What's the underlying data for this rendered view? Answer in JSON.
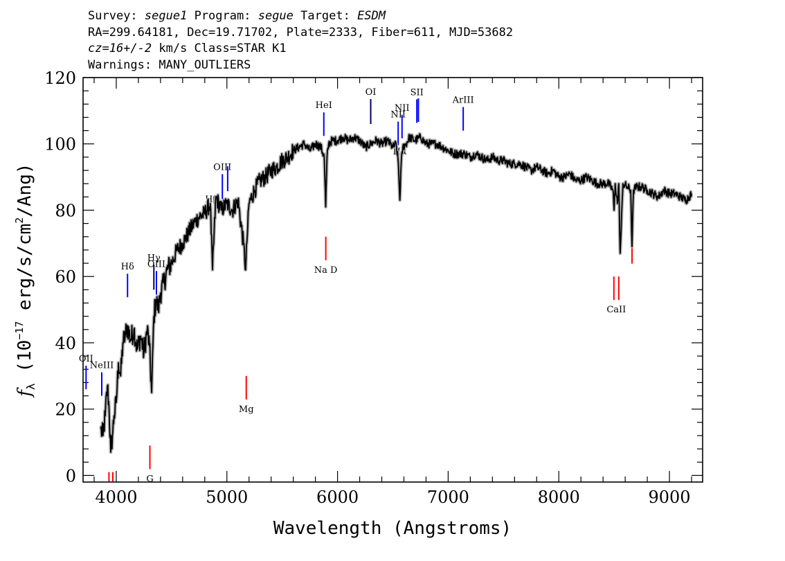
{
  "header": {
    "survey_label": "Survey:",
    "survey_value": "segue1",
    "program_label": "Program:",
    "program_value": "segue",
    "target_label": "Target:",
    "target_value": "ESDM",
    "line2": "RA=299.64181, Dec=19.71702, Plate=2333, Fiber=611, MJD=53682",
    "cz_value": "cz=16+/-2",
    "cz_rest": "km/s Class=STAR K1",
    "warnings": "Warnings: MANY_OUTLIERS"
  },
  "chart_data": {
    "type": "line",
    "xlabel": "Wavelength (Angstroms)",
    "ylabel": "f_λ (10^-17 erg/s/cm^2/Ang)",
    "xlim": [
      3700,
      9300
    ],
    "ylim": [
      -2,
      120
    ],
    "xticks": [
      4000,
      5000,
      6000,
      7000,
      8000,
      9000
    ],
    "yticks": [
      0,
      20,
      40,
      60,
      80,
      100,
      120
    ],
    "colors": {
      "flux": "#000000",
      "error": "#b4b4b4",
      "emission": "#0000ff",
      "absorption": "#ff0000"
    },
    "series": [
      {
        "x": [
          3860,
          3880,
          3900,
          3920,
          3935,
          3950,
          3965,
          3980,
          4000,
          4020,
          4040,
          4060,
          4080,
          4100,
          4130,
          4160,
          4190,
          4220,
          4250,
          4280,
          4300,
          4320,
          4340,
          4360,
          4380,
          4400,
          4430,
          4460,
          4500,
          4550,
          4600,
          4650,
          4700,
          4750,
          4800,
          4850,
          4870,
          4900,
          4950,
          5000,
          5050,
          5100,
          5150,
          5170,
          5180,
          5200,
          5250,
          5300,
          5350,
          5400,
          5450,
          5500,
          5550,
          5600,
          5650,
          5700,
          5750,
          5800,
          5850,
          5880,
          5893,
          5905,
          5920,
          5950,
          6000,
          6050,
          6100,
          6150,
          6200,
          6250,
          6300,
          6350,
          6400,
          6450,
          6500,
          6530,
          6550,
          6563,
          6575,
          6590,
          6620,
          6650,
          6700,
          6750,
          6800,
          6850,
          6900,
          6950,
          7000,
          7050,
          7100,
          7150,
          7200,
          7250,
          7300,
          7350,
          7400,
          7450,
          7500,
          7550,
          7600,
          7650,
          7700,
          7750,
          7800,
          7850,
          7900,
          7950,
          8000,
          8050,
          8100,
          8150,
          8200,
          8250,
          8300,
          8350,
          8400,
          8450,
          8490,
          8500,
          8510,
          8530,
          8542,
          8555,
          8580,
          8620,
          8650,
          8662,
          8675,
          8700,
          8750,
          8800,
          8850,
          8900,
          8950,
          9000,
          9050,
          9100,
          9150,
          9200
        ],
        "y": [
          14,
          12,
          18,
          27,
          20,
          7,
          12,
          18,
          22,
          34,
          30,
          40,
          42,
          45,
          41,
          44,
          38,
          42,
          37,
          44,
          39,
          25,
          48,
          53,
          50,
          55,
          58,
          62,
          64,
          68,
          70,
          73,
          76,
          78,
          79,
          82,
          62,
          84,
          80,
          82,
          80,
          83,
          70,
          62,
          70,
          82,
          86,
          89,
          90,
          92,
          93,
          95,
          96,
          98,
          99,
          100,
          98,
          100,
          99,
          96,
          81,
          96,
          100,
          101,
          101,
          102,
          101,
          102,
          101,
          99,
          100,
          101,
          100,
          101,
          99,
          100,
          94,
          83,
          94,
          99,
          100,
          102,
          101,
          102,
          100,
          100,
          100,
          99,
          98,
          97,
          97,
          97,
          96,
          97,
          96,
          95,
          96,
          95,
          95,
          94,
          94,
          94,
          93,
          92,
          93,
          92,
          91,
          92,
          90,
          90,
          91,
          89,
          89,
          90,
          89,
          88,
          88,
          88,
          86,
          80,
          88,
          82,
          88,
          67,
          88,
          87,
          86,
          69,
          86,
          87,
          87,
          86,
          85,
          84,
          86,
          85,
          85,
          84,
          83,
          85
        ]
      }
    ],
    "emission_lines": [
      {
        "label": "OII",
        "x": 3727
      },
      {
        "label": "NeIII",
        "x": 3869
      },
      {
        "label": "Hδ",
        "x": 4102
      },
      {
        "label": "Hγ",
        "x": 4340
      },
      {
        "label": "OIII",
        "x": 4363
      },
      {
        "label": "Hβ",
        "x": 4861
      },
      {
        "label": "OIII",
        "x": 4959
      },
      {
        "label": "",
        "x": 5007
      },
      {
        "label": "HeI",
        "x": 5876
      },
      {
        "label": "OI",
        "x": 6300
      },
      {
        "label": "NII",
        "x": 6548
      },
      {
        "label": "Hα",
        "x": 6563
      },
      {
        "label": "NII",
        "x": 6583
      },
      {
        "label": "SII",
        "x": 6717
      },
      {
        "label": "",
        "x": 6731
      },
      {
        "label": "ArIII",
        "x": 7136
      }
    ],
    "absorption_lines": [
      {
        "label": "",
        "x": 3934
      },
      {
        "label": "",
        "x": 3969
      },
      {
        "label": "G",
        "x": 4304
      },
      {
        "label": "Mg",
        "x": 5175
      },
      {
        "label": "Na D",
        "x": 5894
      },
      {
        "label": "CaII",
        "x": 8498
      },
      {
        "label": "",
        "x": 8542
      },
      {
        "label": "",
        "x": 8662
      }
    ]
  }
}
